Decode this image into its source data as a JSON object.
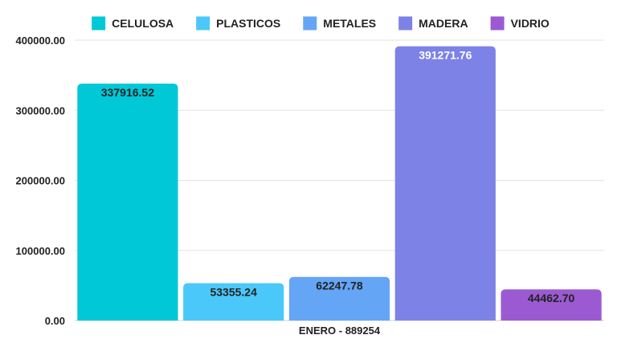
{
  "chart_data": {
    "type": "bar",
    "categories": [
      "ENERO - 889254"
    ],
    "series": [
      {
        "name": "CELULOSA",
        "values": [
          337916.52
        ],
        "color": "#00C8D7",
        "label": "337916.52"
      },
      {
        "name": "PLASTICOS",
        "values": [
          53355.24
        ],
        "color": "#4BC8FA",
        "label": "53355.24"
      },
      {
        "name": "METALES",
        "values": [
          62247.78
        ],
        "color": "#64A5F5",
        "label": "62247.78"
      },
      {
        "name": "MADERA",
        "values": [
          391271.76
        ],
        "color": "#7D82E6",
        "label": "391271.76"
      },
      {
        "name": "VIDRIO",
        "values": [
          44462.7
        ],
        "color": "#9B5AD2",
        "label": "44462.70"
      }
    ],
    "title": "",
    "xlabel": "",
    "ylabel": "",
    "ylim": [
      0,
      400000
    ],
    "y_ticks": [
      "0.00",
      "100000.00",
      "200000.00",
      "300000.00",
      "400000.00"
    ],
    "grid": true,
    "legend_position": "top-center"
  }
}
